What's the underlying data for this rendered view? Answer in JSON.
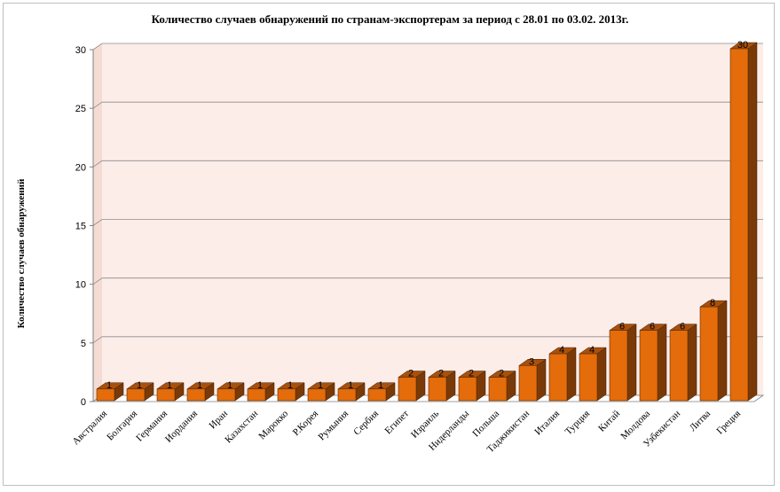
{
  "chart_data": {
    "type": "bar",
    "title": "Количество случаев обнаружений по странам-экспортерам за период с 28.01 по 03.02. 2013г.",
    "xlabel": "",
    "ylabel": "Количество случаев обнаружений",
    "ylim": [
      0,
      30
    ],
    "yticks": [
      "0",
      "5",
      "10",
      "15",
      "20",
      "25",
      "30"
    ],
    "grid": true,
    "legend": "none",
    "categories": [
      "Австралия",
      "Болгария",
      "Германия",
      "Иордания",
      "Иран",
      "Казахстан",
      "Марокко",
      "Р.Корея",
      "Румыния",
      "Сербия",
      "Египет",
      "Израиль",
      "Нидерланды",
      "Польша",
      "Таджикистан",
      "Италия",
      "Турция",
      "Китай",
      "Молдова",
      "Узбекистан",
      "Литва",
      "Греция"
    ],
    "values": [
      1,
      1,
      1,
      1,
      1,
      1,
      1,
      1,
      1,
      1,
      2,
      2,
      2,
      2,
      3,
      4,
      4,
      6,
      6,
      6,
      8,
      30
    ],
    "data_labels": [
      "1",
      "1",
      "1",
      "1",
      "1",
      "1",
      "1",
      "1",
      "1",
      "1",
      "2",
      "2",
      "2",
      "2",
      "3",
      "4",
      "4",
      "6",
      "6",
      "6",
      "8",
      "30"
    ],
    "colors": {
      "bar_front": "#E46C0A",
      "bar_side": "#7A3A08",
      "bar_top": "#A8500C",
      "wall": "#FCEDE9",
      "grid": "#8C8C8C"
    }
  }
}
